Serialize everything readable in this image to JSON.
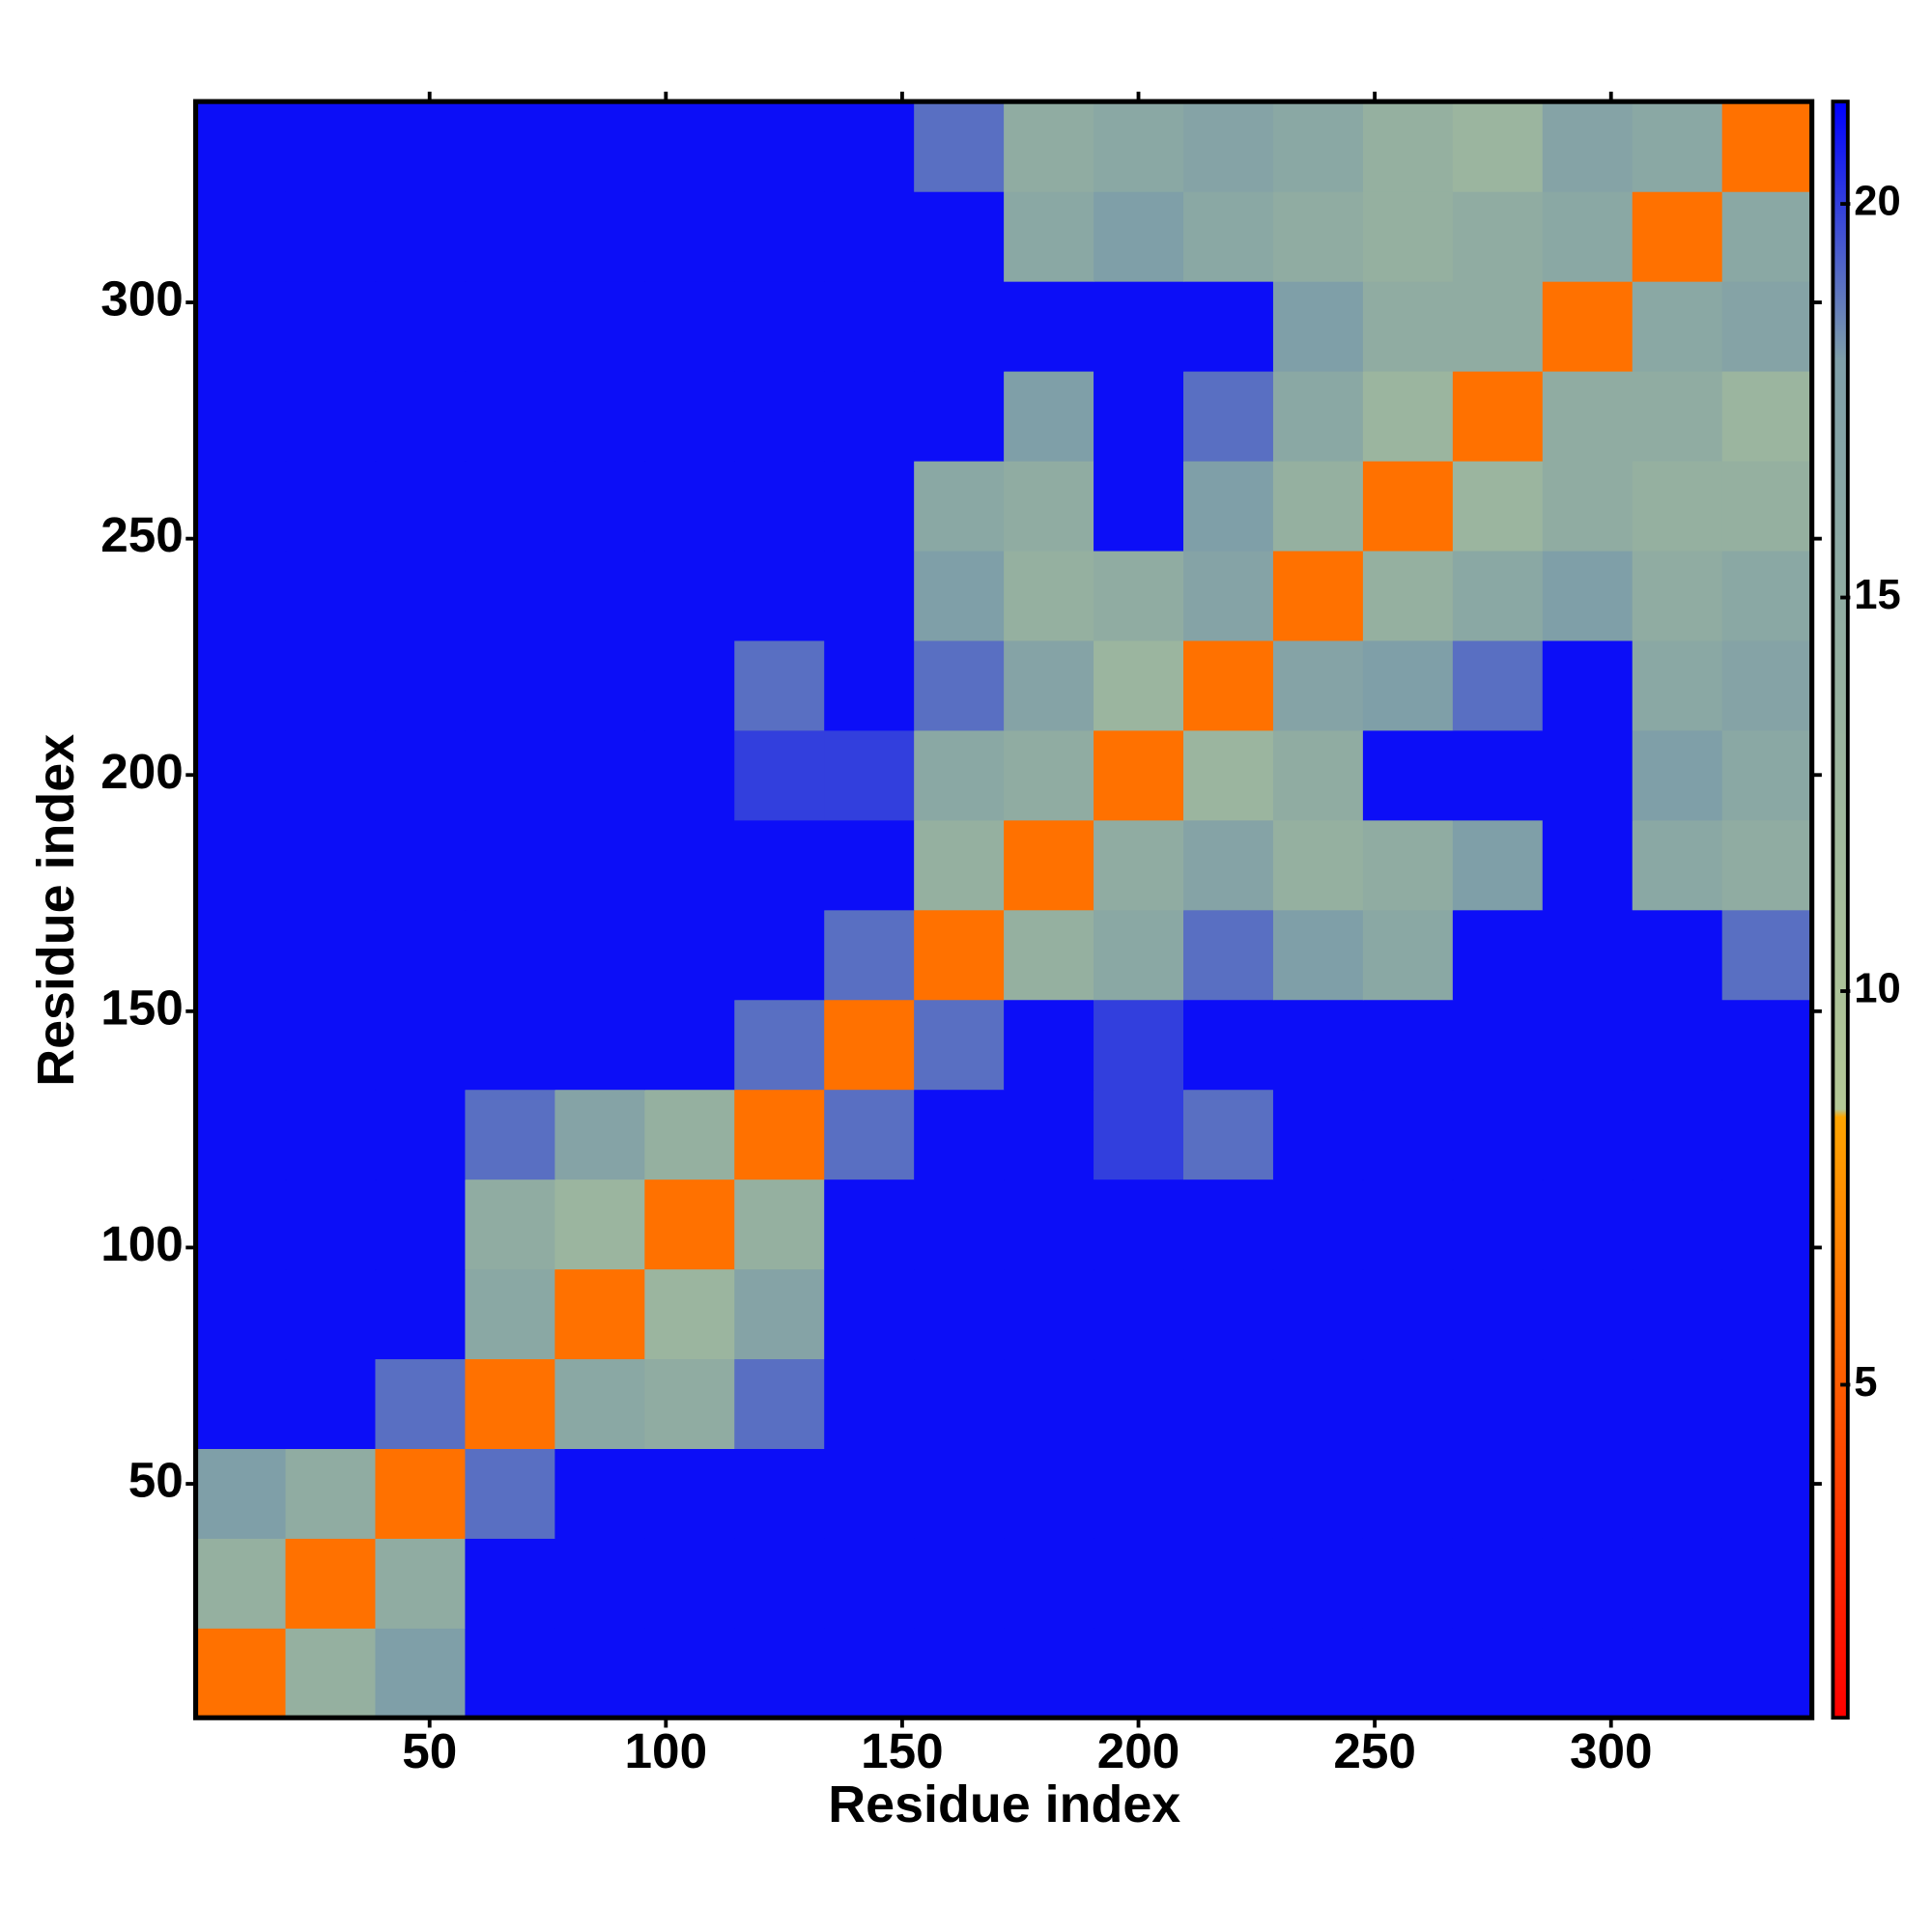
{
  "chart_data": {
    "type": "heatmap",
    "xlabel": "Residue index",
    "ylabel": "Residue index",
    "xbins": [
      0.5,
      19.5,
      38.5,
      57.5,
      76.5,
      95.5,
      114.5,
      133.5,
      152.5,
      171.5,
      190.5,
      209.5,
      228.5,
      247.5,
      266.5,
      285.5,
      304.5,
      323.5,
      342.5
    ],
    "ybins": [
      0.5,
      19.5,
      38.5,
      57.5,
      76.5,
      95.5,
      114.5,
      133.5,
      152.5,
      171.5,
      190.5,
      209.5,
      228.5,
      247.5,
      266.5,
      285.5,
      304.5,
      323.5,
      342.5
    ],
    "values": [
      [
        6,
        14,
        18,
        21,
        21,
        21,
        21,
        21,
        21,
        21,
        21,
        21,
        21,
        21,
        21,
        21,
        21,
        21
      ],
      [
        14,
        6,
        15,
        21,
        21,
        21,
        21,
        21,
        21,
        21,
        21,
        21,
        21,
        21,
        21,
        21,
        21,
        21
      ],
      [
        18,
        15,
        6,
        19,
        21,
        21,
        21,
        21,
        21,
        21,
        21,
        21,
        21,
        21,
        21,
        21,
        21,
        21
      ],
      [
        21,
        21,
        19,
        6,
        16,
        15,
        19,
        21,
        21,
        21,
        21,
        21,
        21,
        21,
        21,
        21,
        21,
        21
      ],
      [
        21,
        21,
        21,
        16,
        6,
        13,
        17,
        21,
        21,
        21,
        21,
        21,
        21,
        21,
        21,
        21,
        21,
        21
      ],
      [
        21,
        21,
        21,
        15,
        13,
        6,
        14,
        21,
        21,
        21,
        21,
        21,
        21,
        21,
        21,
        21,
        21,
        21
      ],
      [
        21,
        21,
        21,
        19,
        17,
        14,
        6,
        19,
        21,
        21,
        20,
        19,
        21,
        21,
        21,
        21,
        21,
        21
      ],
      [
        21,
        21,
        21,
        21,
        21,
        21,
        19,
        6,
        19,
        21,
        20,
        21,
        21,
        21,
        21,
        21,
        21,
        21
      ],
      [
        21,
        21,
        21,
        21,
        21,
        21,
        21,
        19,
        6,
        14,
        16,
        19,
        18,
        16,
        21,
        21,
        21,
        19
      ],
      [
        21,
        21,
        21,
        21,
        21,
        21,
        21,
        21,
        14,
        6,
        15,
        17,
        14,
        15,
        18,
        21,
        16,
        15
      ],
      [
        21,
        21,
        21,
        21,
        21,
        21,
        20,
        20,
        16,
        15,
        6,
        13,
        15,
        21,
        21,
        21,
        18,
        16
      ],
      [
        21,
        21,
        21,
        21,
        21,
        21,
        19,
        21,
        19,
        17,
        13,
        6,
        17,
        18,
        19,
        21,
        16,
        17
      ],
      [
        21,
        21,
        21,
        21,
        21,
        21,
        21,
        21,
        18,
        14,
        15,
        17,
        6,
        14,
        16,
        18,
        15,
        16
      ],
      [
        21,
        21,
        21,
        21,
        21,
        21,
        21,
        21,
        16,
        15,
        21,
        18,
        14,
        6,
        13,
        15,
        14,
        14
      ],
      [
        21,
        21,
        21,
        21,
        21,
        21,
        21,
        21,
        21,
        18,
        21,
        19,
        16,
        13,
        6,
        15,
        15,
        13
      ],
      [
        21,
        21,
        21,
        21,
        21,
        21,
        21,
        21,
        21,
        21,
        21,
        21,
        18,
        15,
        15,
        6,
        16,
        17
      ],
      [
        21,
        21,
        21,
        21,
        21,
        21,
        21,
        21,
        21,
        16,
        18,
        16,
        15,
        14,
        15,
        16,
        6,
        16
      ],
      [
        21,
        21,
        21,
        21,
        21,
        21,
        21,
        21,
        19,
        15,
        16,
        17,
        16,
        14,
        13,
        17,
        16,
        6
      ]
    ],
    "xlim": [
      0.5,
      342.5
    ],
    "ylim": [
      0.5,
      342.5
    ],
    "xticks": [
      50,
      100,
      150,
      200,
      250,
      300
    ],
    "yticks": [
      50,
      100,
      150,
      200,
      250,
      300
    ],
    "zlim": [
      0.77,
      21.3
    ],
    "zticks": [
      5,
      10,
      15,
      20
    ],
    "colorscale": [
      [
        0.77,
        "#ff0000"
      ],
      [
        8.4,
        "#ffa500"
      ],
      [
        8.5,
        "#b4c896"
      ],
      [
        18,
        "#7f9fa8"
      ],
      [
        21.3,
        "#0000ff"
      ]
    ]
  }
}
